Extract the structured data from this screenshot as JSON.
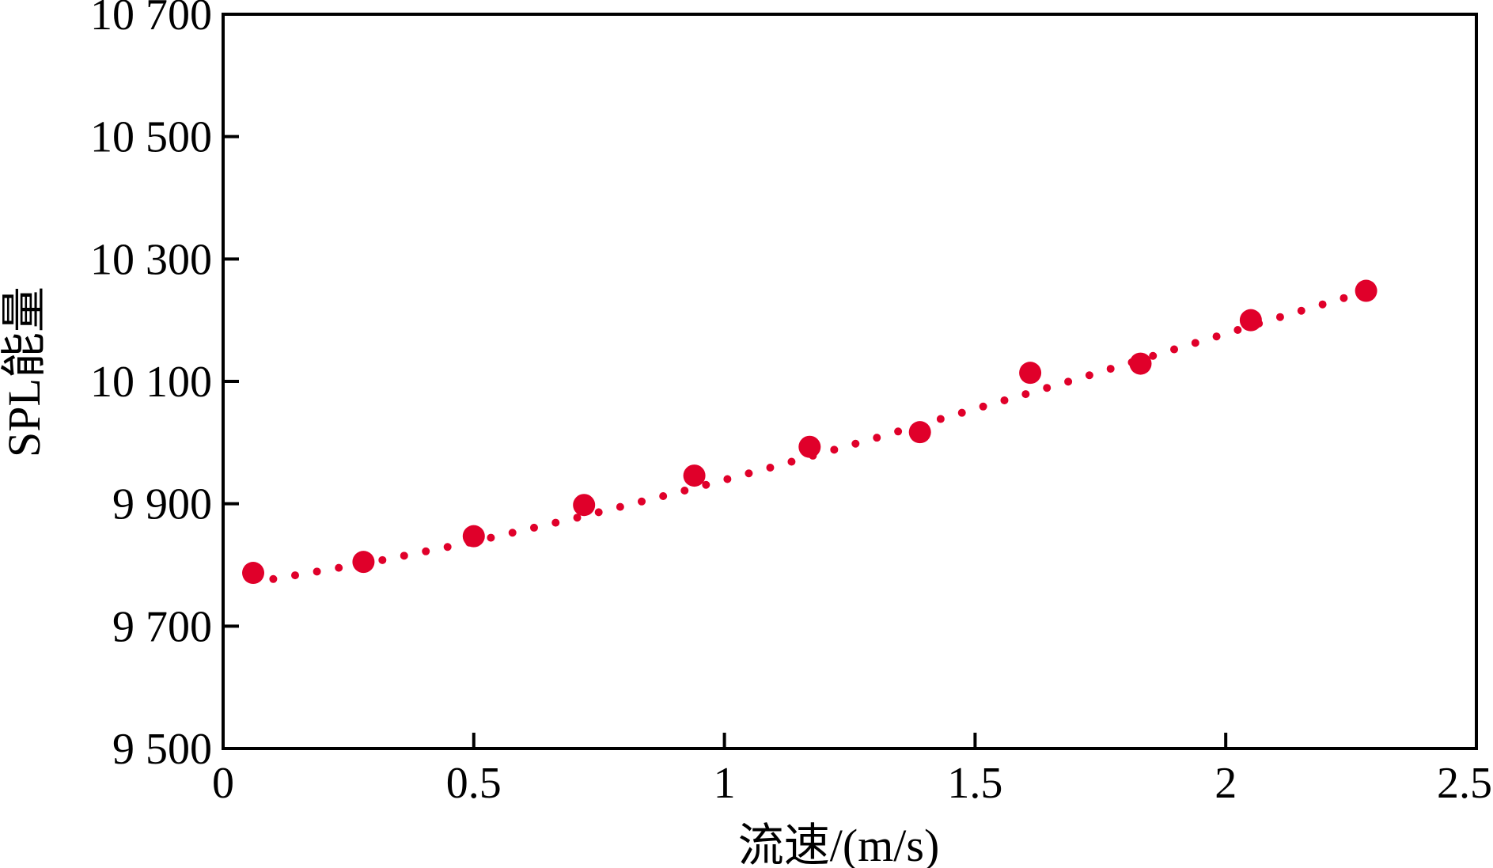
{
  "chart_data": {
    "type": "scatter",
    "xlabel": "流速/(m/s)",
    "ylabel": "SPL能量",
    "xlim": [
      0,
      2.5
    ],
    "ylim": [
      9500,
      10700
    ],
    "xticks": [
      "0",
      "0.5",
      "1",
      "1.5",
      "2",
      "2.5"
    ],
    "yticks": [
      "9 500",
      "9 700",
      "9 900",
      "10 100",
      "10 300",
      "10 500",
      "10 700"
    ],
    "grid": false,
    "series": [
      {
        "type": "scatter",
        "color": "#e0002a",
        "x": [
          0.06,
          0.28,
          0.5,
          0.72,
          0.94,
          1.17,
          1.39,
          1.61,
          1.83,
          2.05,
          2.28
        ],
        "y": [
          9787,
          9805,
          9847,
          9898,
          9946,
          9993,
          10017,
          10114,
          10129,
          10200,
          10248
        ]
      },
      {
        "type": "line",
        "style": "dotted",
        "color": "#e0002a",
        "x": [
          0.1,
          0.3,
          0.5,
          0.7,
          0.9,
          1.1,
          1.3,
          1.5,
          1.7,
          1.9,
          2.1,
          2.3
        ],
        "y": [
          9777,
          9805,
          9838,
          9876,
          9917,
          9961,
          10007,
          10055,
          10103,
          10153,
          10203,
          10252
        ]
      }
    ]
  }
}
